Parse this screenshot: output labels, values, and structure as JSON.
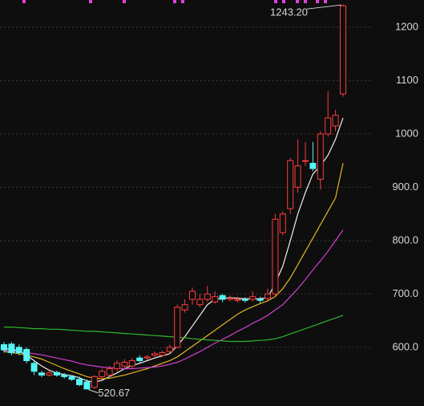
{
  "chart_data": {
    "type": "candlestick",
    "open": [
      605,
      606,
      600,
      596,
      570,
      552,
      548,
      553,
      548,
      545,
      540,
      535,
      525,
      545,
      548,
      560,
      565,
      565,
      580,
      580,
      585,
      585,
      592,
      600,
      670,
      690,
      680,
      690,
      685,
      697,
      690,
      688,
      690,
      690,
      690,
      692,
      700,
      815,
      860,
      900,
      950,
      945,
      915,
      1000,
      1015,
      1075
    ],
    "high": [
      610,
      610,
      605,
      600,
      575,
      556,
      556,
      556,
      552,
      548,
      545,
      540,
      548,
      560,
      565,
      575,
      578,
      580,
      585,
      586,
      592,
      594,
      605,
      680,
      690,
      712,
      700,
      715,
      705,
      700,
      697,
      695,
      694,
      705,
      695,
      710,
      850,
      855,
      955,
      990,
      985,
      985,
      1005,
      1080,
      1045,
      1243.2
    ],
    "low": [
      590,
      585,
      585,
      570,
      548,
      544,
      545,
      545,
      541,
      537,
      527,
      520.67,
      522,
      540,
      545,
      555,
      562,
      560,
      570,
      576,
      582,
      582,
      588,
      598,
      665,
      680,
      675,
      685,
      682,
      685,
      686,
      684,
      684,
      686,
      683,
      688,
      695,
      810,
      850,
      890,
      940,
      930,
      895,
      995,
      1005,
      1070
    ],
    "close": [
      595,
      590,
      590,
      575,
      555,
      548,
      552,
      548,
      545,
      540,
      530,
      522,
      545,
      555,
      560,
      570,
      572,
      575,
      575,
      582,
      588,
      590,
      600,
      675,
      680,
      705,
      690,
      700,
      695,
      690,
      692,
      690,
      688,
      695,
      688,
      700,
      840,
      850,
      950,
      940,
      950,
      935,
      1000,
      1030,
      1035,
      1240
    ],
    "up_color": "#ff3b3b",
    "down_color": "#54f6f6",
    "series": [
      {
        "color": "#f0f0f0",
        "values": [
          598,
          596,
          593,
          585,
          575,
          565,
          557,
          552,
          549,
          547,
          543,
          537,
          535,
          538,
          545,
          552,
          560,
          566,
          570,
          575,
          580,
          584,
          588,
          603,
          620,
          640,
          660,
          680,
          690,
          692,
          693,
          692,
          691,
          691,
          691,
          693,
          720,
          752,
          800,
          850,
          890,
          925,
          940,
          960,
          990,
          1030
        ]
      },
      {
        "color": "#e6b422",
        "values": [
          592,
          590,
          588,
          585,
          582,
          578,
          572,
          566,
          560,
          555,
          550,
          545,
          542,
          541,
          542,
          545,
          548,
          552,
          556,
          560,
          565,
          570,
          575,
          582,
          592,
          602,
          612,
          622,
          632,
          642,
          652,
          662,
          670,
          676,
          682,
          687,
          695,
          710,
          730,
          755,
          780,
          805,
          830,
          855,
          880,
          945
        ]
      },
      {
        "color": "#d23fd2",
        "values": [
          594,
          593,
          592,
          590,
          588,
          586,
          583,
          580,
          577,
          574,
          570,
          567,
          565,
          563,
          562,
          561,
          560,
          560,
          561,
          562,
          563,
          565,
          568,
          572,
          578,
          585,
          592,
          600,
          608,
          615,
          622,
          630,
          637,
          645,
          652,
          660,
          670,
          680,
          695,
          710,
          727,
          745,
          762,
          780,
          800,
          820
        ]
      },
      {
        "color": "#2fb52f",
        "values": [
          638,
          638,
          637,
          636,
          635,
          635,
          634,
          634,
          633,
          632,
          631,
          630,
          630,
          629,
          628,
          627,
          626,
          625,
          624,
          623,
          622,
          621,
          620,
          619,
          618,
          616,
          615,
          614,
          613,
          612,
          611,
          611,
          611,
          612,
          613,
          614,
          616,
          620,
          625,
          630,
          635,
          640,
          645,
          650,
          655,
          660
        ]
      }
    ],
    "ylim": [
      490,
      1251
    ],
    "yticks": [
      {
        "value": 600,
        "label": "600.0"
      },
      {
        "value": 700,
        "label": "700.0"
      },
      {
        "value": 800,
        "label": "800.0"
      },
      {
        "value": 900,
        "label": "900.0"
      },
      1000,
      1100,
      1200
    ],
    "grid": true,
    "high_label": "1243.20",
    "low_label": "520.67"
  }
}
